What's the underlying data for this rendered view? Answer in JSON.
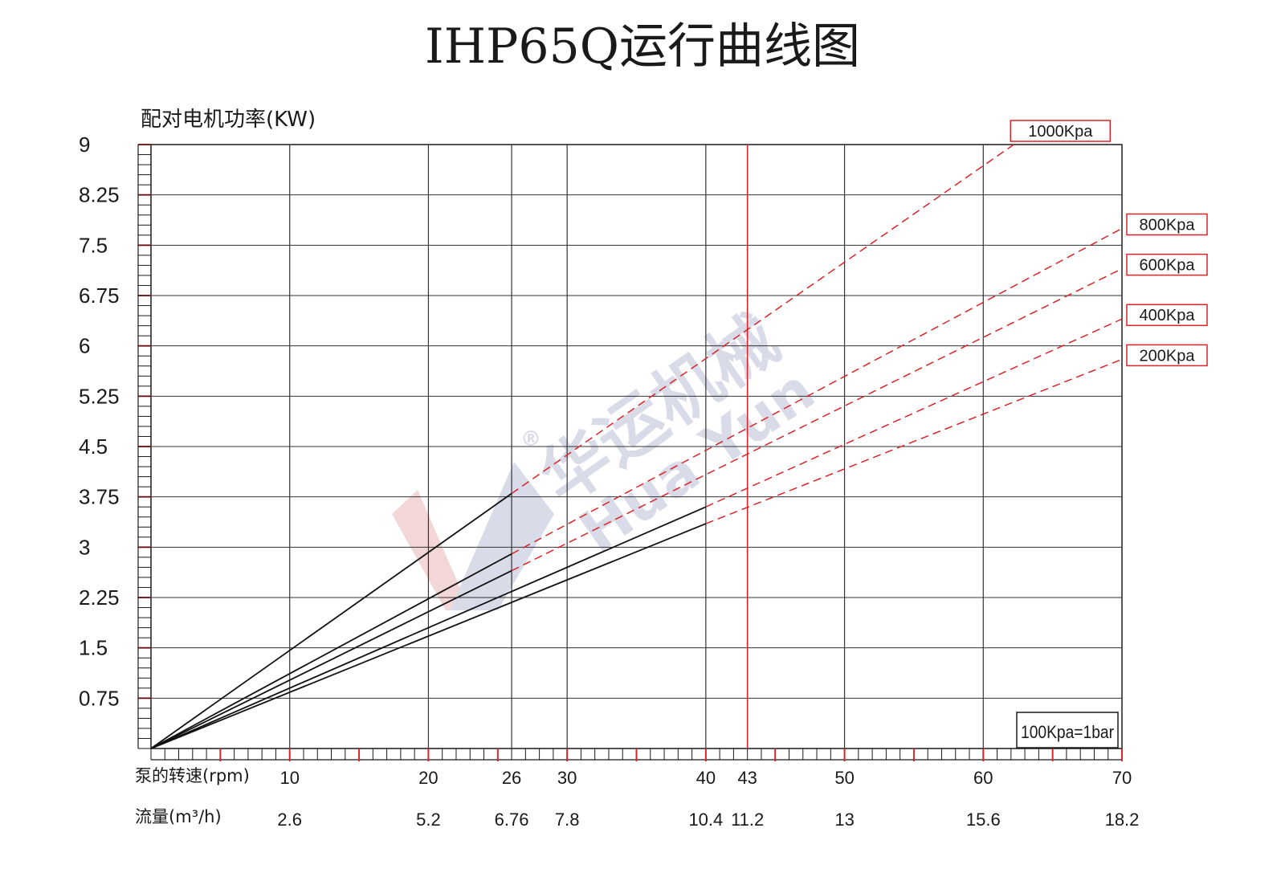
{
  "chart_data": {
    "type": "line",
    "title": "IHP65Q运行曲线图",
    "ylabel": "配对电机功率(KW)",
    "xlabel": "泵的转速(rpm)",
    "x2label": "流量(m³/h)",
    "ylim": [
      0,
      9
    ],
    "xlim": [
      0,
      70
    ],
    "y_ticks": [
      "9",
      "8.25",
      "7.5",
      "6.75",
      "6",
      "5.25",
      "4.5",
      "3.75",
      "3",
      "2.25",
      "1.5",
      "0.75"
    ],
    "x_ticks": [
      {
        "rpm": "10",
        "flow": "2.6"
      },
      {
        "rpm": "20",
        "flow": "5.2"
      },
      {
        "rpm": "26",
        "flow": "6.76"
      },
      {
        "rpm": "30",
        "flow": "7.8"
      },
      {
        "rpm": "40",
        "flow": "10.4"
      },
      {
        "rpm": "43",
        "flow": "11.2"
      },
      {
        "rpm": "50",
        "flow": "13"
      },
      {
        "rpm": "60",
        "flow": "15.6"
      },
      {
        "rpm": "70",
        "flow": "18.2"
      }
    ],
    "max_speed_rpm": 43,
    "series": [
      {
        "name": "1000Kpa",
        "solid_end_rpm": 26,
        "points": [
          [
            0,
            0
          ],
          [
            26,
            3.8
          ],
          [
            62.2,
            9.0
          ]
        ]
      },
      {
        "name": "800Kpa",
        "solid_end_rpm": 26,
        "points": [
          [
            0,
            0
          ],
          [
            26,
            2.9
          ],
          [
            70,
            7.75
          ]
        ]
      },
      {
        "name": "600Kpa",
        "solid_end_rpm": 26,
        "points": [
          [
            0,
            0
          ],
          [
            26,
            2.65
          ],
          [
            70,
            7.15
          ]
        ]
      },
      {
        "name": "400Kpa",
        "solid_end_rpm": 40,
        "points": [
          [
            0,
            0
          ],
          [
            40,
            3.6
          ],
          [
            70,
            6.4
          ]
        ]
      },
      {
        "name": "200Kpa",
        "solid_end_rpm": 40,
        "points": [
          [
            0,
            0
          ],
          [
            40,
            3.35
          ],
          [
            70,
            5.8
          ]
        ]
      }
    ],
    "note": "100Kpa=1bar",
    "grid": true,
    "legend": "right"
  },
  "watermark": {
    "brand": "华运机械",
    "brand_latin": "Hua Yun",
    "mark": "®"
  },
  "colors": {
    "axis": "#1a1a1a",
    "grid": "#333333",
    "accent": "#d9252a",
    "curve": "#111111",
    "watermark_red": "#f3d6d6",
    "watermark_blue": "#d9dce8"
  }
}
